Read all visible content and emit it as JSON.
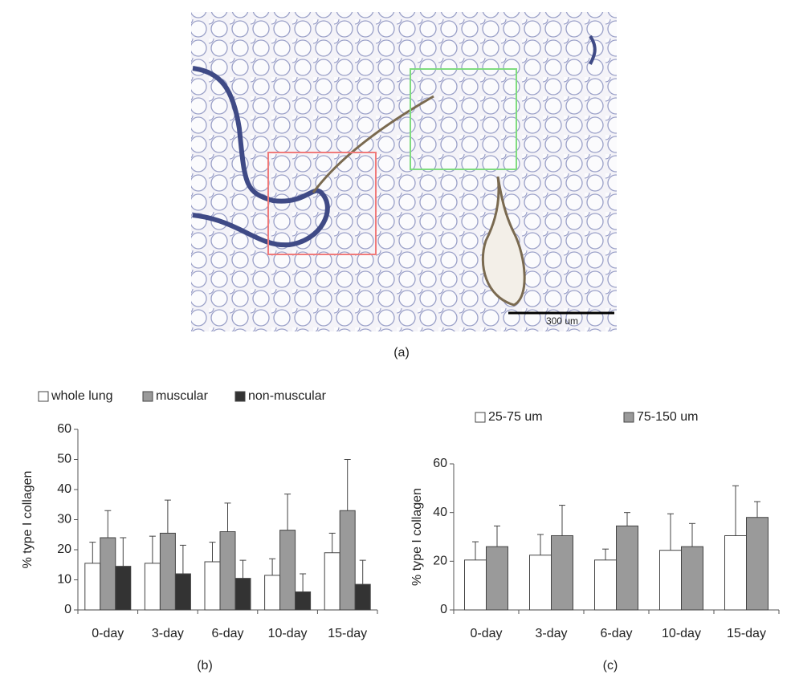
{
  "image": {
    "caption": "(a)",
    "scale_label": "300 um"
  },
  "chart_data": [
    {
      "type": "bar",
      "caption": "(b)",
      "y_label": "% type I collagen",
      "categories": [
        "0-day",
        "3-day",
        "6-day",
        "10-day",
        "15-day"
      ],
      "series": [
        {
          "name": "whole lung",
          "color": "#ffffff",
          "values": [
            15.5,
            15.5,
            16,
            11.5,
            19
          ],
          "errors": [
            7,
            9,
            6.5,
            5.5,
            6.5
          ]
        },
        {
          "name": "muscular",
          "color": "#9a9a9a",
          "values": [
            24,
            25.5,
            26,
            26.5,
            33
          ],
          "errors": [
            9,
            11,
            9.5,
            12,
            17
          ]
        },
        {
          "name": "non-muscular",
          "color": "#333333",
          "values": [
            14.5,
            12,
            10.5,
            6,
            8.5
          ],
          "errors": [
            9.5,
            9.5,
            6,
            6,
            8
          ]
        }
      ],
      "ylim": [
        0,
        60
      ],
      "yticks": [
        0,
        10,
        20,
        30,
        40,
        50,
        60
      ]
    },
    {
      "type": "bar",
      "caption": "(c)",
      "y_label": "% type I collagen",
      "categories": [
        "0-day",
        "3-day",
        "6-day",
        "10-day",
        "15-day"
      ],
      "series": [
        {
          "name": "25-75 um",
          "color": "#ffffff",
          "values": [
            20.5,
            22.5,
            20.5,
            24.5,
            30.5
          ],
          "errors": [
            7.5,
            8.5,
            4.5,
            15,
            20.5
          ]
        },
        {
          "name": "75-150 um",
          "color": "#9a9a9a",
          "values": [
            26,
            30.5,
            34.5,
            26,
            38
          ],
          "errors": [
            8.5,
            12.5,
            5.5,
            9.5,
            6.5
          ]
        }
      ],
      "ylim": [
        0,
        60
      ],
      "yticks": [
        0,
        20,
        40,
        60
      ]
    }
  ]
}
